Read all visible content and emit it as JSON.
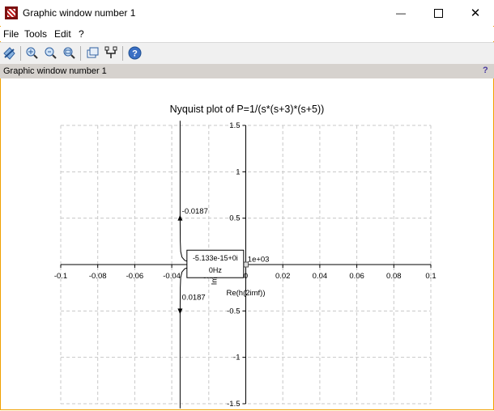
{
  "window": {
    "title": "Graphic window number 1",
    "close_glyph": "✕",
    "minimize_glyph": "—"
  },
  "menu": [
    "File",
    "Tools",
    "Edit",
    "?"
  ],
  "toolbar": {
    "buttons": [
      "rotate-icon",
      "zoom-fit-icon",
      "zoom-in-icon",
      "zoom-out-icon",
      "datatip-icon",
      "curve-edit-icon",
      "help-icon"
    ]
  },
  "panel": {
    "title": "Graphic window number 1",
    "help_glyph": "?"
  },
  "chart_data": {
    "type": "line",
    "title": "Nyquist plot of P=1/(s*(s+3)*(s+5))",
    "xlabel": "Re(h(2imf))",
    "ylabel": "Im",
    "xlim": [
      -0.1,
      0.1
    ],
    "ylim": [
      -1.5,
      1.5
    ],
    "grid": true,
    "x_ticks": [
      -0.1,
      -0.08,
      -0.06,
      -0.04,
      -0.02,
      0,
      0.02,
      0.04,
      0.06,
      0.08,
      0.1
    ],
    "x_tick_labels": [
      "-0.1",
      "-0.08",
      "-0.06",
      "-0.04",
      "-0.02",
      "0",
      "0.02",
      "0.04",
      "0.06",
      "0.08",
      "0.1"
    ],
    "y_ticks": [
      -1.5,
      -1,
      -0.5,
      0,
      0.5,
      1,
      1.5
    ],
    "y_tick_labels": [
      "-1.5",
      "-1",
      "-0.5",
      "",
      "0.5",
      "1",
      "1.5"
    ],
    "series": [
      {
        "x": [
          -0.0355,
          -0.0355,
          -0.0354,
          -0.0352,
          -0.0345,
          -0.033,
          -0.03,
          -0.024,
          -0.015,
          -0.006,
          -0.001,
          0
        ],
        "y": [
          1.55,
          0.5,
          0.25,
          0.14,
          0.08,
          0.045,
          0.025,
          0.012,
          0.005,
          0.0015,
          0.0002,
          0
        ]
      },
      {
        "x": [
          -0.0355,
          -0.0355,
          -0.0354,
          -0.0352,
          -0.0345,
          -0.033,
          -0.03,
          -0.024,
          -0.015,
          -0.006,
          -0.001,
          0
        ],
        "y": [
          -1.55,
          -0.5,
          -0.25,
          -0.14,
          -0.08,
          -0.045,
          -0.025,
          -0.012,
          -0.005,
          -0.0015,
          -0.0002,
          0
        ]
      }
    ],
    "annotations": [
      {
        "text": "-0.0187",
        "x": -0.0345,
        "y": 0.55
      },
      {
        "text": "0.0187",
        "x": -0.0345,
        "y": -0.38
      },
      {
        "text": "1e+03",
        "x": 0.001,
        "y": 0.03
      }
    ],
    "datatip": {
      "line1": "-5.133e-15+0i",
      "line2": "0Hz"
    }
  }
}
